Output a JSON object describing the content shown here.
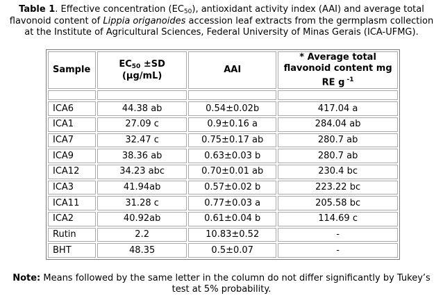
{
  "caption": {
    "label": "Table 1",
    "text_before_italic": ". Effective concentration (EC",
    "ec_sub": "50",
    "text_mid": "), antioxidant activity index (AAI) and average total flavonoid content of ",
    "italic": "Lippia origanoides",
    "text_after_italic": " accession leaf extracts from the germplasm collection at the Institute of Agricultural Sciences, Federal University of Minas Gerais (ICA-UFMG)."
  },
  "table": {
    "headers": {
      "sample": "Sample",
      "ec_prefix": "EC",
      "ec_sub": "50",
      "ec_suffix": " ±SD",
      "ec_unit": "(µg/mL)",
      "aai": "AAI",
      "flav_line1": "* Average total",
      "flav_line2": "flavonoid content mg",
      "flav_line3": "RE g",
      "flav_sup": " -1"
    },
    "rows": [
      {
        "sample": "ICA6",
        "ec50": "44.38 ab",
        "aai": "0.54±0.02b",
        "flav": "417.04 a"
      },
      {
        "sample": "ICA1",
        "ec50": "27.09 c",
        "aai": "0.9±0.16 a",
        "flav": "284.04 ab"
      },
      {
        "sample": "ICA7",
        "ec50": "32.47 c",
        "aai": "0.75±0.17 ab",
        "flav": "280.7 ab"
      },
      {
        "sample": "ICA9",
        "ec50": "38.36 ab",
        "aai": "0.63±0.03 b",
        "flav": "280.7 ab"
      },
      {
        "sample": "ICA12",
        "ec50": "34.23 abc",
        "aai": "0.70±0.01 ab",
        "flav": "230.4 bc"
      },
      {
        "sample": "ICA3",
        "ec50": "41.94ab",
        "aai": "0.57±0.02 b",
        "flav": "223.22 bc"
      },
      {
        "sample": "ICA11",
        "ec50": "31.28 c",
        "aai": "0.77±0.03 a",
        "flav": "205.58 bc"
      },
      {
        "sample": "ICA2",
        "ec50": "40.92ab",
        "aai": "0.61±0.04 b",
        "flav": "114.69 c"
      },
      {
        "sample": "Rutin",
        "ec50": "2.2",
        "aai": "10.83±0.52",
        "flav": "-"
      },
      {
        "sample": "BHT",
        "ec50": "48.35",
        "aai": "0.5±0.07",
        "flav": "-"
      }
    ]
  },
  "note": {
    "label": "Note:",
    "text": " Means followed by the same letter in the column do not differ significantly by Tukey’s test at 5% probability."
  }
}
